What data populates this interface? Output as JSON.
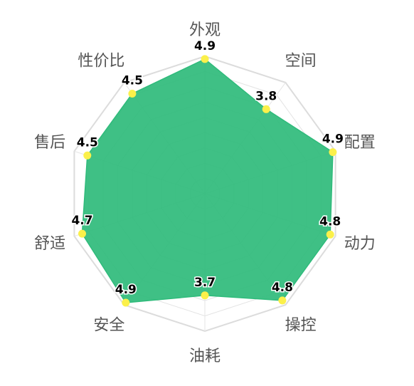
{
  "chart_data": {
    "type": "radar",
    "axes": [
      "外观",
      "空间",
      "配置",
      "动力",
      "操控",
      "油耗",
      "安全",
      "舒适",
      "售后",
      "性价比"
    ],
    "values": [
      4.9,
      3.8,
      4.9,
      4.8,
      4.8,
      3.7,
      4.9,
      4.7,
      4.5,
      4.5
    ],
    "value_labels": [
      "4.9",
      "3.8",
      "4.9",
      "4.8",
      "4.8",
      "3.7",
      "4.9",
      "4.7",
      "4.5",
      "4.5"
    ],
    "range": [
      0,
      5
    ],
    "grid": true,
    "colors": {
      "area": "#2fbb7b",
      "point": "#fbf04a",
      "grid": "#e3e3e3"
    }
  }
}
